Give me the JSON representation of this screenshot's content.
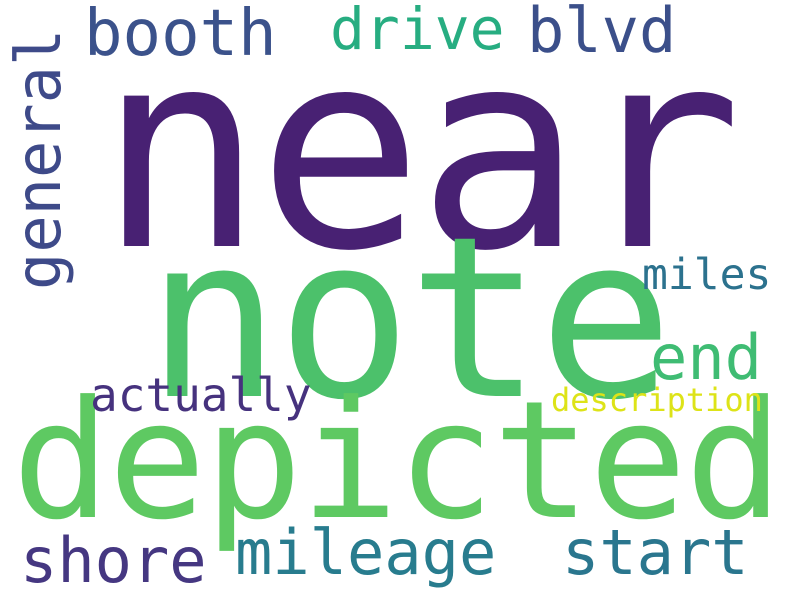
{
  "words": {
    "near": {
      "text": "near",
      "color": "#482173"
    },
    "note": {
      "text": "note",
      "color": "#4cc16b"
    },
    "depicted": {
      "text": "depicted",
      "color": "#5ec962"
    },
    "booth": {
      "text": "booth",
      "color": "#3b528b"
    },
    "drive": {
      "text": "drive",
      "color": "#27ad81"
    },
    "blvd": {
      "text": "blvd",
      "color": "#3b4f8a"
    },
    "general": {
      "text": "general",
      "color": "#3e4a89"
    },
    "miles": {
      "text": "miles",
      "color": "#2c728e"
    },
    "end": {
      "text": "end",
      "color": "#3fbc73"
    },
    "actually": {
      "text": "actually",
      "color": "#46327e"
    },
    "description": {
      "text": "description",
      "color": "#dde318"
    },
    "shore": {
      "text": "shore",
      "color": "#453781"
    },
    "mileage": {
      "text": "mileage",
      "color": "#287c8e"
    },
    "start": {
      "text": "start",
      "color": "#2a768e"
    }
  }
}
